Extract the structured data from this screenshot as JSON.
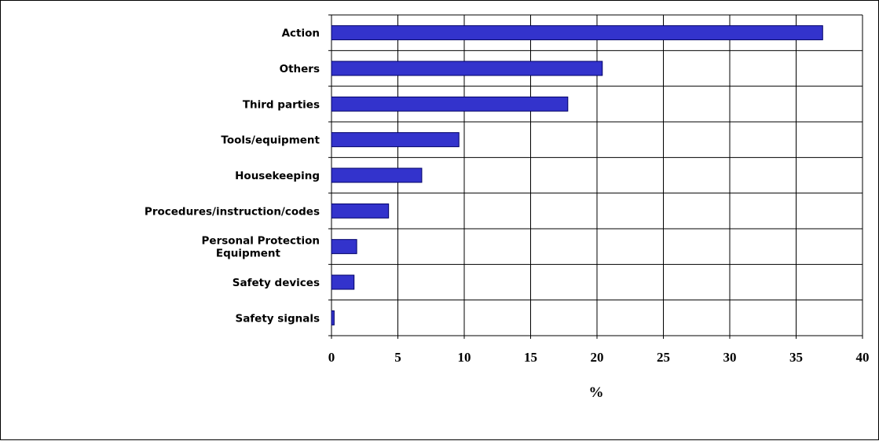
{
  "chart_data": {
    "type": "bar",
    "orientation": "horizontal",
    "categories": [
      [
        "Action"
      ],
      [
        "Others"
      ],
      [
        "Third parties"
      ],
      [
        "Tools/equipment"
      ],
      [
        "Housekeeping"
      ],
      [
        "Procedures/instruction/codes"
      ],
      [
        "Personal Protection",
        "Equipment"
      ],
      [
        "Safety devices"
      ],
      [
        "Safety signals"
      ]
    ],
    "values": [
      37.0,
      20.4,
      17.8,
      9.6,
      6.8,
      4.3,
      1.9,
      1.7,
      0.2
    ],
    "title": "",
    "xlabel": "%",
    "ylabel": "",
    "xlim": [
      0,
      40
    ],
    "xticks": [
      0,
      5,
      10,
      15,
      20,
      25,
      30,
      35,
      40
    ],
    "grid": true,
    "legend": "none",
    "colors": {
      "bar_fill": "#3333cc",
      "bar_stroke": "#000066",
      "grid": "#000000",
      "background": "#ffffff"
    }
  }
}
